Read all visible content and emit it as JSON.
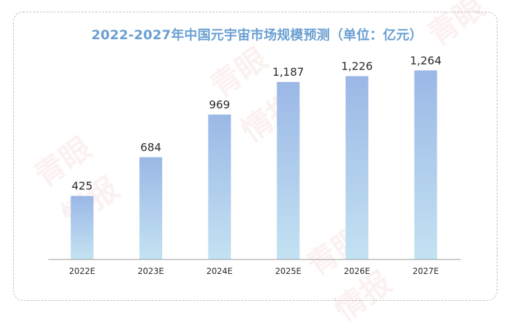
{
  "chart_data": {
    "type": "bar",
    "title": "2022-2027年中国元宇宙市场规模预测（单位：亿元）",
    "categories": [
      "2022E",
      "2023E",
      "2024E",
      "2025E",
      "2026E",
      "2027E"
    ],
    "values": [
      425,
      684,
      969,
      1187,
      1226,
      1264
    ],
    "value_labels": [
      "425",
      "684",
      "969",
      "1,187",
      "1,226",
      "1,264"
    ],
    "xlabel": "",
    "ylabel": "",
    "ylim": [
      0,
      1330
    ],
    "grid": false,
    "legend": "none",
    "colors": {
      "bar_top": "#9bb8e6",
      "bar_bottom": "#c3e2f2",
      "title": "#6a9fd2",
      "axis": "#9a9a9a",
      "label": "#2a2a2a"
    }
  },
  "watermark": {
    "text_1": "青眼",
    "text_2": "情报"
  }
}
